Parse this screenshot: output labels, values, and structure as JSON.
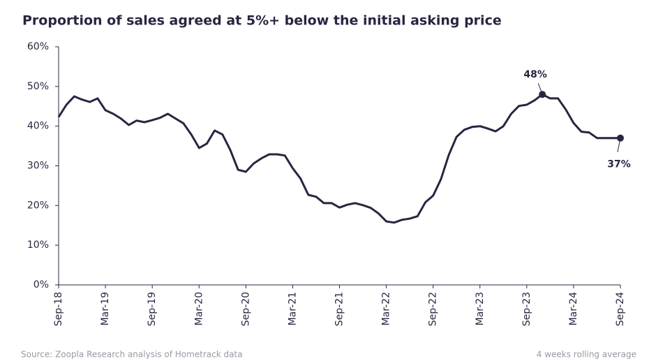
{
  "chart_data": {
    "type": "line",
    "title": "Proportion of sales agreed at 5%+ below the initial asking price",
    "source": "Source: Zoopla Research analysis of Hometrack data",
    "note": "4 weeks rolling average",
    "categories": [
      "Sep-18",
      null,
      null,
      null,
      null,
      null,
      "Mar-19",
      null,
      null,
      null,
      null,
      null,
      "Sep-19",
      null,
      null,
      null,
      null,
      null,
      "Mar-20",
      null,
      null,
      null,
      null,
      null,
      "Sep-20",
      null,
      null,
      null,
      null,
      null,
      "Mar-21",
      null,
      null,
      null,
      null,
      null,
      "Sep-21",
      null,
      null,
      null,
      null,
      null,
      "Mar-22",
      null,
      null,
      null,
      null,
      null,
      "Sep-22",
      null,
      null,
      null,
      null,
      null,
      "Mar-23",
      null,
      null,
      null,
      null,
      null,
      "Sep-23",
      null,
      null,
      null,
      null,
      null,
      "Mar-24",
      null,
      null,
      null,
      null,
      null,
      "Sep-24"
    ],
    "series": [
      {
        "name": "Proportion of sales agreed at 5%+ below asking",
        "color": "#2b2440",
        "values": [
          42.3,
          45.4,
          47.5,
          46.7,
          46.1,
          47.0,
          44.0,
          43.1,
          41.9,
          40.3,
          41.4,
          41.0,
          41.5,
          42.1,
          43.1,
          41.9,
          40.7,
          37.9,
          34.5,
          35.6,
          38.9,
          37.9,
          34.0,
          29.0,
          28.5,
          30.6,
          31.9,
          32.9,
          32.9,
          32.6,
          29.4,
          26.8,
          22.7,
          22.2,
          20.6,
          20.6,
          19.5,
          20.2,
          20.6,
          20.1,
          19.4,
          18.0,
          16.0,
          15.7,
          16.4,
          16.7,
          17.3,
          20.8,
          22.5,
          26.6,
          32.7,
          37.3,
          39.1,
          39.8,
          40.0,
          39.4,
          38.7,
          40.0,
          43.1,
          45.1,
          45.4,
          46.5,
          48,
          47.0,
          47.0,
          44.2,
          40.8,
          38.6,
          38.4,
          37.0,
          37,
          37,
          37
        ],
        "value_labels": [
          null,
          null,
          null,
          null,
          null,
          null,
          null,
          null,
          null,
          null,
          null,
          null,
          null,
          null,
          null,
          null,
          null,
          null,
          null,
          null,
          null,
          null,
          null,
          null,
          null,
          null,
          null,
          null,
          null,
          null,
          null,
          null,
          null,
          null,
          null,
          null,
          null,
          null,
          null,
          null,
          null,
          null,
          null,
          null,
          null,
          null,
          null,
          null,
          null,
          null,
          null,
          null,
          null,
          null,
          null,
          null,
          null,
          null,
          null,
          null,
          null,
          null,
          "48%",
          null,
          null,
          null,
          null,
          null,
          null,
          null,
          null,
          null,
          "37%"
        ]
      }
    ],
    "ylim": [
      0,
      60
    ],
    "yticks": [
      {
        "value": 0,
        "label": "0%"
      },
      {
        "value": 10,
        "label": "10%"
      },
      {
        "value": 20,
        "label": "20%"
      },
      {
        "value": 30,
        "label": "30%"
      },
      {
        "value": 40,
        "label": "40%"
      },
      {
        "value": 50,
        "label": "50%"
      },
      {
        "value": 60,
        "label": "60%"
      }
    ],
    "grid": false
  }
}
